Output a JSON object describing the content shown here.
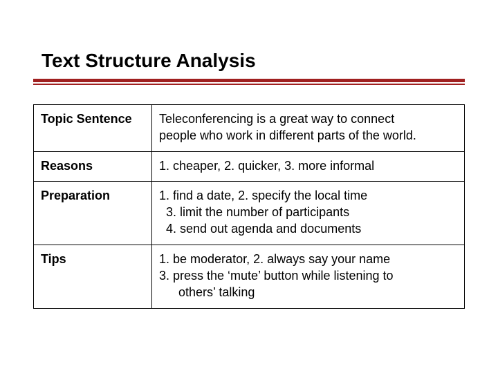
{
  "title": "Text Structure Analysis",
  "accent_color": "#a02020",
  "rows": [
    {
      "label": "Topic Sentence",
      "lines": [
        {
          "text": "Teleconferencing is a great way to connect",
          "indent": 0
        },
        {
          "text": "people who work in different parts of the world.",
          "indent": 0
        }
      ]
    },
    {
      "label": "Reasons",
      "lines": [
        {
          "text": "1. cheaper, 2. quicker, 3. more informal",
          "indent": 0
        }
      ]
    },
    {
      "label": "Preparation",
      "lines": [
        {
          "text": "1. find a date, 2. specify the local time",
          "indent": 0
        },
        {
          "text": "3. limit the number of participants",
          "indent": 1
        },
        {
          "text": "4. send out agenda and documents",
          "indent": 1
        }
      ]
    },
    {
      "label": "Tips",
      "lines": [
        {
          "text": "1. be moderator, 2. always say your name",
          "indent": 0
        },
        {
          "text": "3. press the ‘mute’ button while listening to",
          "indent": 0
        },
        {
          "text": "others’ talking",
          "indent": 2
        }
      ]
    }
  ]
}
